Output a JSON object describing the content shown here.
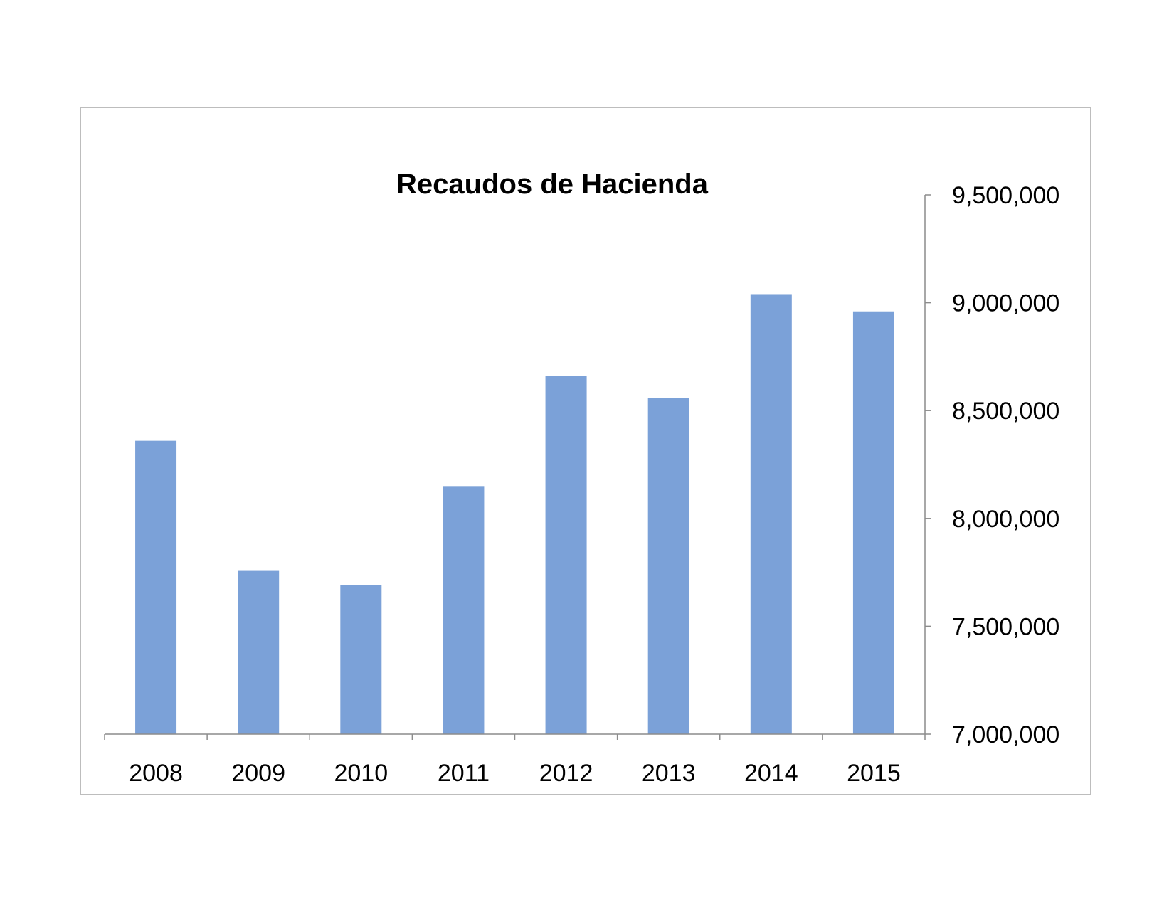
{
  "chart_data": {
    "type": "bar",
    "title": "Recaudos de Hacienda",
    "xlabel": "",
    "ylabel": "",
    "categories": [
      "2008",
      "2009",
      "2010",
      "2011",
      "2012",
      "2013",
      "2014",
      "2015"
    ],
    "values": [
      8360000,
      7760000,
      7690000,
      8150000,
      8660000,
      8560000,
      9040000,
      8960000
    ],
    "ylim": [
      7000000,
      9500000
    ],
    "y_ticks": [
      7000000,
      7500000,
      8000000,
      8500000,
      9000000,
      9500000
    ],
    "y_tick_labels": [
      "7,000,000",
      "7,500,000",
      "8,000,000",
      "8,500,000",
      "9,000,000",
      "9,500,000"
    ],
    "y_axis_position": "right",
    "grid": false,
    "legend": "none",
    "colors": {
      "bar": "#7ba1d8",
      "axis": "#8c8c8c",
      "frame": "#bdbdbd"
    }
  }
}
